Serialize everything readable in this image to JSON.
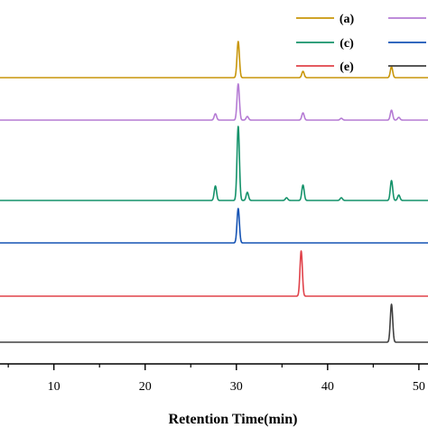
{
  "chart_data": {
    "type": "line",
    "title": "",
    "xlabel": "Retention Time(min)",
    "ylabel": "",
    "xlim": [
      3.5,
      51
    ],
    "x_ticks": [
      10,
      20,
      30,
      40,
      50
    ],
    "x_tick_labels": [
      "10",
      "20",
      "30",
      "40",
      "50"
    ],
    "grid": false,
    "legend_position": "top-right",
    "series": [
      {
        "name": "(a)",
        "color": "#c8960a",
        "peaks": [
          {
            "x": 30.2,
            "height": 40
          },
          {
            "x": 37.3,
            "height": 7
          },
          {
            "x": 47.0,
            "height": 12
          }
        ]
      },
      {
        "name": "",
        "color": "#b57bd4",
        "peaks": [
          {
            "x": 27.7,
            "height": 7
          },
          {
            "x": 30.2,
            "height": 40
          },
          {
            "x": 31.2,
            "height": 4
          },
          {
            "x": 37.3,
            "height": 8
          },
          {
            "x": 41.5,
            "height": 2
          },
          {
            "x": 47.0,
            "height": 11
          },
          {
            "x": 47.8,
            "height": 3
          }
        ]
      },
      {
        "name": "(c)",
        "color": "#14926a",
        "peaks": [
          {
            "x": 27.7,
            "height": 16
          },
          {
            "x": 30.2,
            "height": 82
          },
          {
            "x": 31.2,
            "height": 9
          },
          {
            "x": 35.5,
            "height": 3
          },
          {
            "x": 37.3,
            "height": 17
          },
          {
            "x": 41.5,
            "height": 3
          },
          {
            "x": 47.0,
            "height": 22
          },
          {
            "x": 47.8,
            "height": 6
          }
        ]
      },
      {
        "name": "",
        "color": "#1553b4",
        "peaks": [
          {
            "x": 30.2,
            "height": 38
          }
        ]
      },
      {
        "name": "(e)",
        "color": "#e0424a",
        "peaks": [
          {
            "x": 37.1,
            "height": 50
          }
        ]
      },
      {
        "name": "",
        "color": "#404040",
        "peaks": [
          {
            "x": 47.0,
            "height": 42
          }
        ]
      }
    ],
    "legend": [
      {
        "label": "(a)",
        "color": "#c8960a"
      },
      {
        "label": "",
        "color": "#b57bd4"
      },
      {
        "label": "(c)",
        "color": "#14926a"
      },
      {
        "label": "",
        "color": "#1553b4"
      },
      {
        "label": "(e)",
        "color": "#e0424a"
      },
      {
        "label": "",
        "color": "#404040"
      }
    ]
  }
}
